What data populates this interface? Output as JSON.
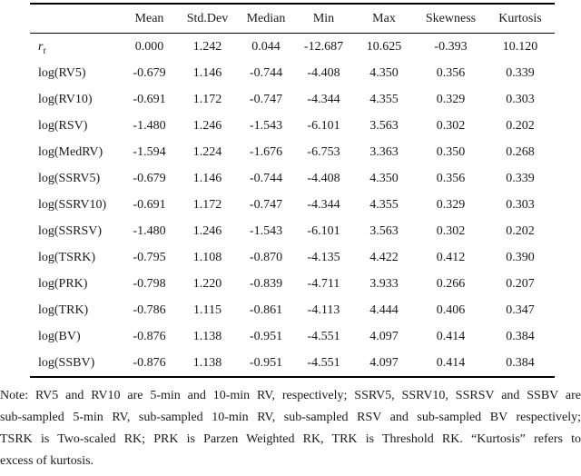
{
  "table": {
    "columns": [
      "",
      "Mean",
      "Std.Dev",
      "Median",
      "Min",
      "Max",
      "Skewness",
      "Kurtosis"
    ],
    "rows": [
      {
        "label": "r",
        "sub": "t",
        "values": [
          "0.000",
          "1.242",
          "0.044",
          "-12.687",
          "10.625",
          "-0.393",
          "10.120"
        ]
      },
      {
        "label": "log(RV5)",
        "values": [
          "-0.679",
          "1.146",
          "-0.744",
          "-4.408",
          "4.350",
          "0.356",
          "0.339"
        ]
      },
      {
        "label": "log(RV10)",
        "values": [
          "-0.691",
          "1.172",
          "-0.747",
          "-4.344",
          "4.355",
          "0.329",
          "0.303"
        ]
      },
      {
        "label": "log(RSV)",
        "values": [
          "-1.480",
          "1.246",
          "-1.543",
          "-6.101",
          "3.563",
          "0.302",
          "0.202"
        ]
      },
      {
        "label": "log(MedRV)",
        "values": [
          "-1.594",
          "1.224",
          "-1.676",
          "-6.753",
          "3.363",
          "0.350",
          "0.268"
        ]
      },
      {
        "label": "log(SSRV5)",
        "values": [
          "-0.679",
          "1.146",
          "-0.744",
          "-4.408",
          "4.350",
          "0.356",
          "0.339"
        ]
      },
      {
        "label": "log(SSRV10)",
        "values": [
          "-0.691",
          "1.172",
          "-0.747",
          "-4.344",
          "4.355",
          "0.329",
          "0.303"
        ]
      },
      {
        "label": "log(SSRSV)",
        "values": [
          "-1.480",
          "1.246",
          "-1.543",
          "-6.101",
          "3.563",
          "0.302",
          "0.202"
        ]
      },
      {
        "label": "log(TSRK)",
        "values": [
          "-0.795",
          "1.108",
          "-0.870",
          "-4.135",
          "4.422",
          "0.412",
          "0.390"
        ]
      },
      {
        "label": "log(PRK)",
        "values": [
          "-0.798",
          "1.220",
          "-0.839",
          "-4.711",
          "3.933",
          "0.266",
          "0.207"
        ]
      },
      {
        "label": "log(TRK)",
        "values": [
          "-0.786",
          "1.115",
          "-0.861",
          "-4.113",
          "4.444",
          "0.406",
          "0.347"
        ]
      },
      {
        "label": "log(BV)",
        "values": [
          "-0.876",
          "1.138",
          "-0.951",
          "-4.551",
          "4.097",
          "0.414",
          "0.384"
        ]
      },
      {
        "label": "log(SSBV)",
        "values": [
          "-0.876",
          "1.138",
          "-0.951",
          "-4.551",
          "4.097",
          "0.414",
          "0.384"
        ]
      }
    ]
  },
  "note": {
    "lines": [
      "Note: RV5 and RV10 are 5-min and 10-min RV, respectively; SSRV5, SSRV10, SSRSV and SSBV are",
      "sub-sampled 5-min RV, sub-sampled 10-min RV, sub-sampled RSV and sub-sampled BV respectively;",
      "TSRK is Two-scaled RK; PRK is Parzen Weighted RK, TRK is Threshold RK. “Kurtosis” refers to",
      "excess of kurtosis."
    ]
  },
  "colors": {
    "background": "#ffffff",
    "text": "#1a1a1a",
    "rule": "#000000"
  }
}
